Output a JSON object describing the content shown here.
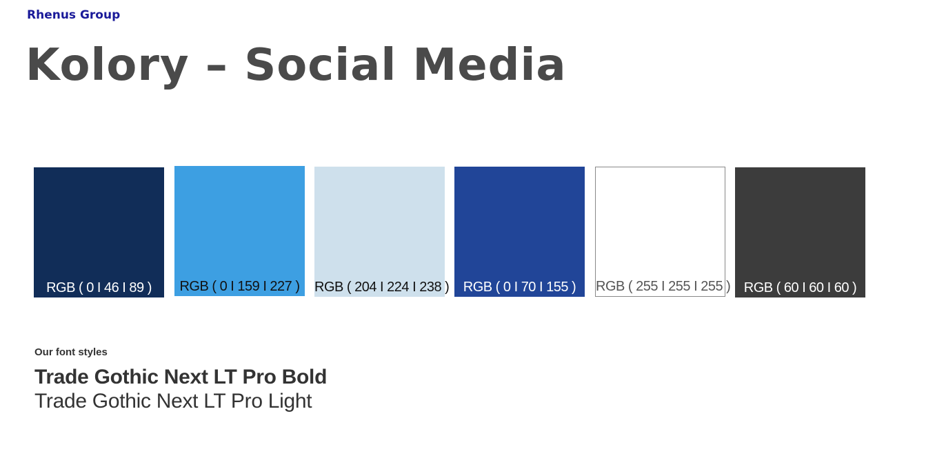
{
  "header": {
    "brand": "Rhenus Group",
    "title": "Kolory – Social Media"
  },
  "swatches": [
    {
      "label": "RGB ( 0 I 46 I 89 )",
      "color": "#112d58",
      "text_color": "#ffffff"
    },
    {
      "label": "RGB ( 0 I 159 I 227 )",
      "color": "#3d9fe2",
      "text_color": "#111111"
    },
    {
      "label": "RGB ( 204 I 224 I 238 )",
      "color": "#cee0ec",
      "text_color": "#111111"
    },
    {
      "label": "RGB ( 0 I 70 I 155 )",
      "color": "#214598",
      "text_color": "#ffffff"
    },
    {
      "label": "RGB ( 255 I 255 I 255 )",
      "color": "#ffffff",
      "text_color": "#555555"
    },
    {
      "label": "RGB ( 60 I 60 I 60 )",
      "color": "#3c3c3c",
      "text_color": "#ffffff"
    }
  ],
  "fonts": {
    "heading": "Our font styles",
    "bold": "Trade Gothic Next LT Pro Bold",
    "light": "Trade Gothic Next LT Pro Light"
  }
}
